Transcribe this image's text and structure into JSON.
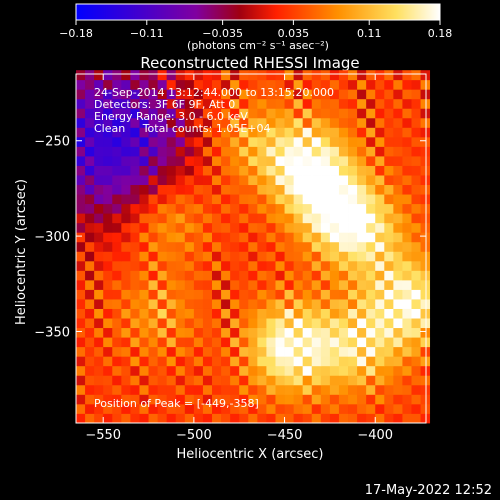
{
  "chart_data": {
    "type": "heatmap",
    "title": "Reconstructed RHESSI Image",
    "xlabel": "Heliocentric X (arcsec)",
    "ylabel": "Heliocentric Y (arcsec)",
    "xlim": [
      -565,
      -372
    ],
    "ylim": [
      -398,
      -215
    ],
    "x_ticks": [
      -550,
      -500,
      -450,
      -400
    ],
    "y_ticks": [
      -250,
      -300,
      -350
    ],
    "x_tick_labels": [
      "−550",
      "−500",
      "−450",
      "−400"
    ],
    "y_tick_labels": [
      "−250",
      "−300",
      "−350"
    ],
    "colorbar": {
      "range": [
        -0.18,
        0.18
      ],
      "ticks": [
        -0.18,
        -0.11,
        -0.035,
        0.035,
        0.11,
        0.18
      ],
      "tick_labels": [
        "−0.18",
        "−0.11",
        "−0.035",
        "0.035",
        "0.11",
        "0.18"
      ],
      "units_label": "(photons cm⁻² s⁻¹ asec⁻²)",
      "colors": [
        "#0000ff",
        "#7000a0",
        "#a00010",
        "#ff2000",
        "#ff9000",
        "#ffe060",
        "#ffffff"
      ]
    },
    "annotations": [
      "24-Sep-2014 13:12:44.000 to 13:15:20.000",
      "Detectors: 3F 6F 9F, Att 0",
      "Energy Range: 3.0 - 6.0 keV",
      "Clean     Total counts: 1.05E+04"
    ],
    "peak_label": "Position of Peak = [-449,-358]",
    "peak": {
      "x": -449,
      "y": -358
    },
    "bright_regions": [
      {
        "x": -447,
        "y": -358,
        "value": 0.18
      },
      {
        "x": -438,
        "y": -262,
        "value": 0.17
      },
      {
        "x": -422,
        "y": -285,
        "value": 0.15
      },
      {
        "x": -382,
        "y": -335,
        "value": 0.16
      },
      {
        "x": -405,
        "y": -300,
        "value": 0.12
      },
      {
        "x": -410,
        "y": -358,
        "value": 0.13
      },
      {
        "x": -515,
        "y": -290,
        "value": 0.1
      },
      {
        "x": -470,
        "y": -250,
        "value": 0.09
      },
      {
        "x": -520,
        "y": -340,
        "value": 0.08
      }
    ],
    "negative_region": {
      "x": -545,
      "y": -250,
      "value": -0.13
    }
  },
  "timestamp": "17-May-2022 12:52"
}
